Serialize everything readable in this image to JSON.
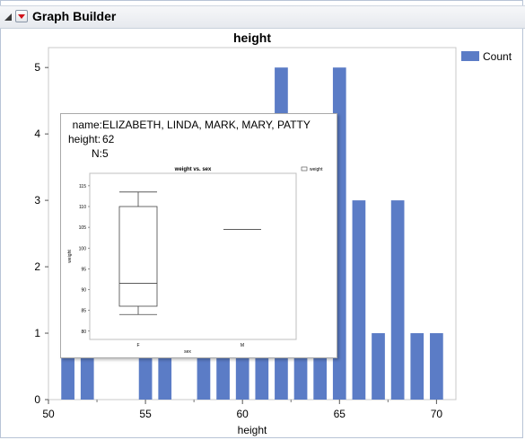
{
  "app": {
    "title": "Graph Builder"
  },
  "chart_data": {
    "type": "bar",
    "title": "height",
    "xlabel": "height",
    "ylabel": "",
    "x_ticks": [
      50,
      55,
      60,
      65,
      70
    ],
    "y_ticks": [
      0,
      1,
      2,
      3,
      4,
      5
    ],
    "xlim": [
      50,
      71
    ],
    "ylim": [
      0,
      5.3
    ],
    "legend": {
      "position": "top-right",
      "entries": [
        {
          "name": "Count",
          "color": "#5b7cc6"
        }
      ]
    },
    "series": [
      {
        "name": "Count",
        "color": "#5b7cc6",
        "x": [
          51,
          52,
          55,
          56,
          58,
          59,
          60,
          61,
          62,
          63,
          64,
          65,
          66,
          67,
          68,
          69,
          70
        ],
        "values": [
          1,
          1,
          2,
          2,
          1,
          1,
          1,
          3,
          5,
          4,
          4,
          5,
          3,
          1,
          3,
          1,
          1
        ]
      }
    ]
  },
  "tooltip": {
    "rows": [
      {
        "key": "name:",
        "value": "ELIZABETH, LINDA, MARK, MARY, PATTY"
      },
      {
        "key": "height:",
        "value": "62"
      },
      {
        "key": "N:",
        "value": "5"
      }
    ],
    "thumbnail": {
      "type": "box",
      "title": "weight vs. sex",
      "xlabel": "sex",
      "ylabel": "weight",
      "legend": "weight",
      "categories": [
        "F",
        "M"
      ],
      "y_ticks": [
        80,
        85,
        90,
        95,
        100,
        105,
        110,
        115
      ],
      "ylim": [
        78,
        118
      ],
      "boxes": [
        {
          "category": "F",
          "min": 84,
          "q1": 86,
          "median": 91.5,
          "q3": 110,
          "max": 113.5
        },
        {
          "category": "M",
          "min": 104.5,
          "q1": 104.5,
          "median": 104.5,
          "q3": 104.5,
          "max": 104.5
        }
      ]
    }
  }
}
